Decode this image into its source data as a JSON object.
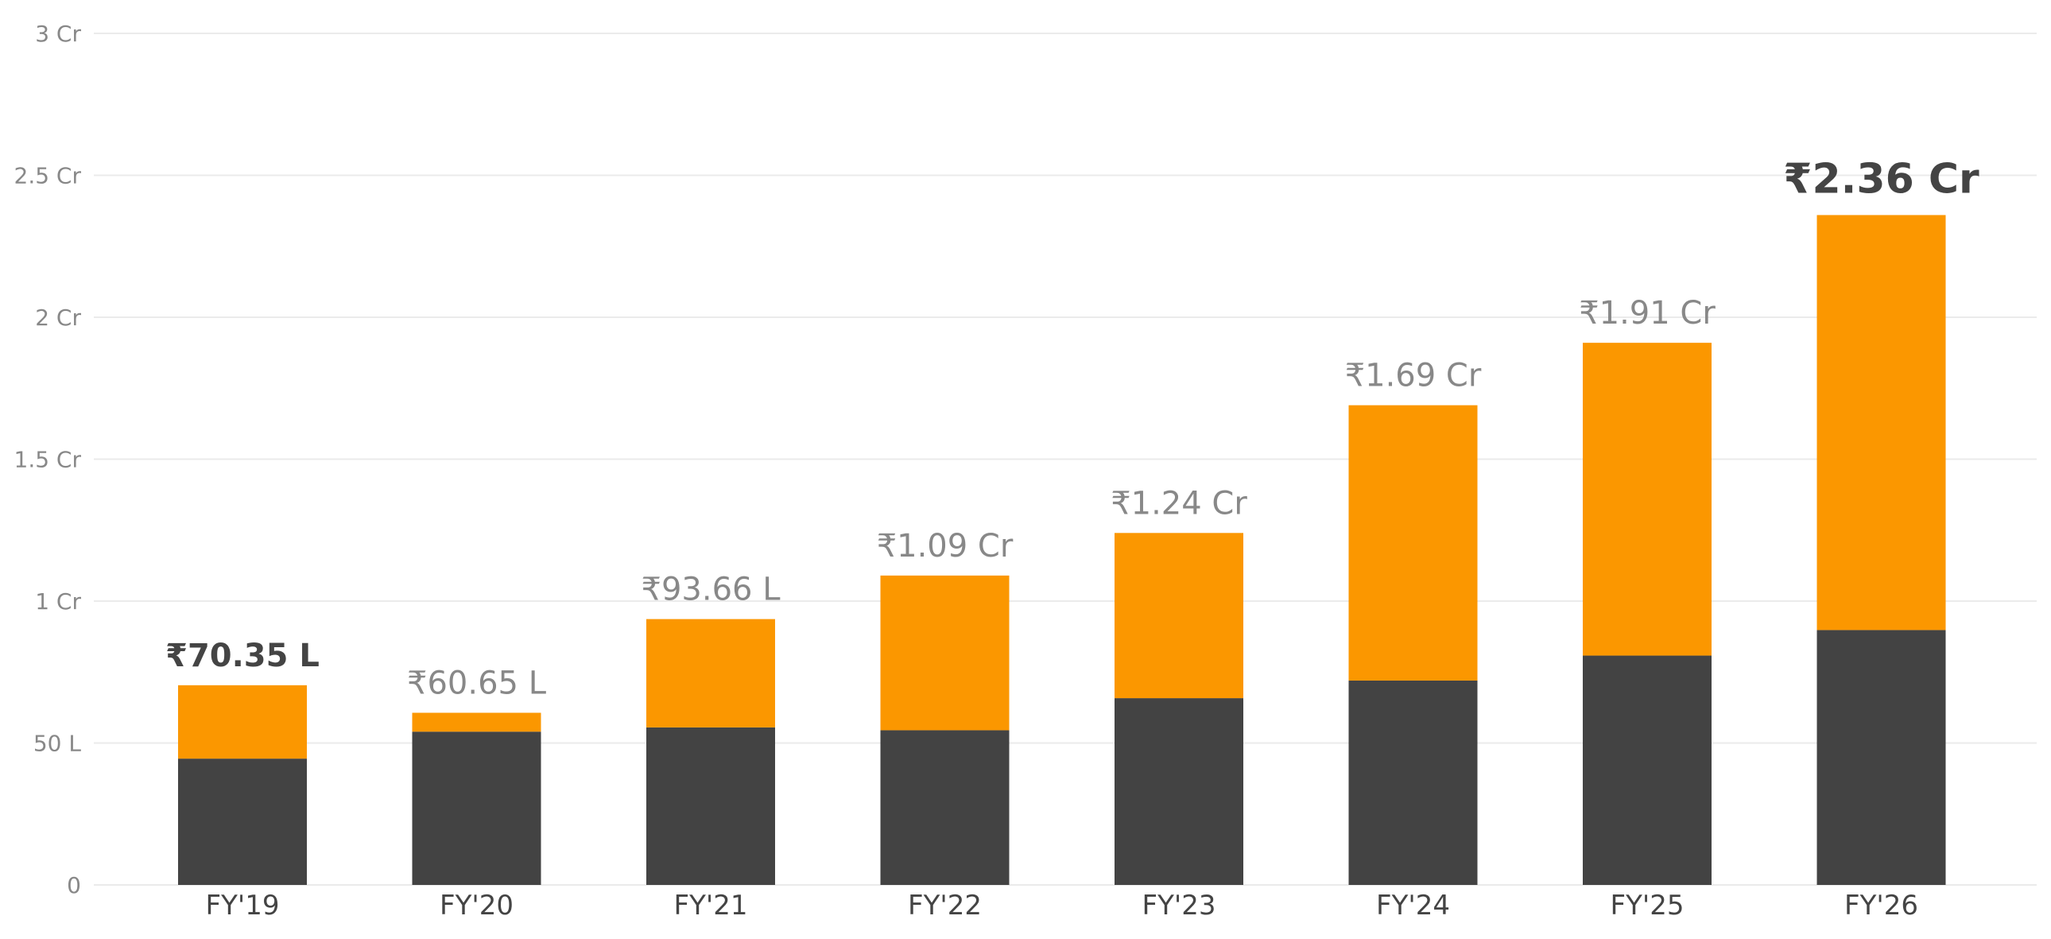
{
  "chart_data": {
    "type": "bar",
    "stacked": true,
    "categories": [
      "FY'19",
      "FY'20",
      "FY'21",
      "FY'22",
      "FY'23",
      "FY'24",
      "FY'25",
      "FY'26"
    ],
    "series": [
      {
        "color": "#434343",
        "values": [
          0.445,
          0.54,
          0.555,
          0.545,
          0.658,
          0.72,
          0.808,
          0.898
        ]
      },
      {
        "color": "#FB9700",
        "values": [
          0.2585,
          0.0665,
          0.3816,
          0.545,
          0.582,
          0.97,
          1.102,
          1.462
        ]
      }
    ],
    "totals": [
      0.7035,
      0.6065,
      0.9366,
      1.09,
      1.24,
      1.69,
      1.91,
      2.36
    ],
    "total_labels": [
      "₹70.35 L",
      "₹60.65 L",
      "₹93.66 L",
      "₹1.09 Cr",
      "₹1.24 Cr",
      "₹1.69 Cr",
      "₹1.91 Cr",
      "₹2.36 Cr"
    ],
    "emphasized_totals": [
      "FY'19",
      "FY'26"
    ],
    "yticks": [
      0,
      0.5,
      1,
      1.5,
      2,
      2.5,
      3
    ],
    "ytick_labels": [
      "0",
      "50 L",
      "1 Cr",
      "1.5 Cr",
      "2 Cr",
      "2.5 Cr",
      "3 Cr"
    ],
    "ylim": [
      0,
      3
    ],
    "grid": true,
    "legend": "none"
  }
}
